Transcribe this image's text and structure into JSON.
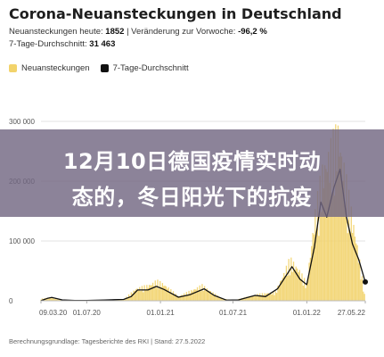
{
  "header": {
    "title": "Corona-Neuansteckungen in Deutschland",
    "line1_label": "Neuansteckungen heute:",
    "line1_value": "1852",
    "line1_sep": "|",
    "line1_change_label": "Veränderung zur Vorwoche:",
    "line1_change_value": "-96,2 %",
    "line2_label": "7-Tage-Durchschnitt:",
    "line2_value": "31 463"
  },
  "legend": {
    "items": [
      {
        "label": "Neuansteckungen",
        "color": "#f2d36b"
      },
      {
        "label": "7-Tage-Durchschnitt",
        "color": "#111111"
      }
    ]
  },
  "overlay": {
    "line1": "12月10日德国疫情实时动",
    "line2": "态的，冬日阳光下的抗疫"
  },
  "footer": {
    "text": "Berechnungsgrundlage: Tagesberichte des RKI | Stand: 27.5.2022"
  },
  "chart_data": {
    "type": "bar",
    "x_labels": [
      "09.03.20",
      "01.07.20",
      "01.01.21",
      "01.07.21",
      "01.01.22",
      "27.05.22"
    ],
    "y_ticks": [
      0,
      100000,
      200000,
      300000
    ],
    "y_tick_labels": [
      "0",
      "100 000",
      "200 000",
      "300 000"
    ],
    "ylim": [
      0,
      300000
    ],
    "bar_color": "#f2d36b",
    "avg_color": "#111111",
    "series": [
      {
        "name": "Neuansteckungen",
        "points": [
          [
            "2020-03-09",
            3500
          ],
          [
            "2020-04-01",
            6500
          ],
          [
            "2020-05-01",
            1500
          ],
          [
            "2020-07-01",
            500
          ],
          [
            "2020-10-01",
            2500
          ],
          [
            "2020-11-01",
            22000
          ],
          [
            "2020-12-01",
            28000
          ],
          [
            "2020-12-23",
            36000
          ],
          [
            "2021-01-10",
            30000
          ],
          [
            "2021-02-15",
            8000
          ],
          [
            "2021-04-15",
            28000
          ],
          [
            "2021-06-01",
            5000
          ],
          [
            "2021-07-01",
            700
          ],
          [
            "2021-09-01",
            12000
          ],
          [
            "2021-10-15",
            16000
          ],
          [
            "2021-11-20",
            75000
          ],
          [
            "2021-12-10",
            60000
          ],
          [
            "2022-01-01",
            30000
          ],
          [
            "2022-01-20",
            150000
          ],
          [
            "2022-02-10",
            240000
          ],
          [
            "2022-03-20",
            310000
          ],
          [
            "2022-04-15",
            190000
          ],
          [
            "2022-05-05",
            110000
          ],
          [
            "2022-05-27",
            1852
          ]
        ]
      },
      {
        "name": "7-Tage-Durchschnitt",
        "points": [
          [
            "2020-03-09",
            200
          ],
          [
            "2020-03-25",
            4000
          ],
          [
            "2020-04-05",
            5500
          ],
          [
            "2020-05-01",
            1500
          ],
          [
            "2020-06-01",
            400
          ],
          [
            "2020-07-01",
            450
          ],
          [
            "2020-08-15",
            1300
          ],
          [
            "2020-10-01",
            2200
          ],
          [
            "2020-10-20",
            7000
          ],
          [
            "2020-11-05",
            18000
          ],
          [
            "2020-12-01",
            18000
          ],
          [
            "2020-12-22",
            24000
          ],
          [
            "2021-01-10",
            19000
          ],
          [
            "2021-02-15",
            6000
          ],
          [
            "2021-03-15",
            10000
          ],
          [
            "2021-04-20",
            20000
          ],
          [
            "2021-05-15",
            9000
          ],
          [
            "2021-06-15",
            1000
          ],
          [
            "2021-07-15",
            1500
          ],
          [
            "2021-08-25",
            9000
          ],
          [
            "2021-09-20",
            7000
          ],
          [
            "2021-10-20",
            20000
          ],
          [
            "2021-11-25",
            57000
          ],
          [
            "2021-12-15",
            36000
          ],
          [
            "2022-01-01",
            27000
          ],
          [
            "2022-01-20",
            90000
          ],
          [
            "2022-02-05",
            165000
          ],
          [
            "2022-02-20",
            140000
          ],
          [
            "2022-03-10",
            190000
          ],
          [
            "2022-03-25",
            220000
          ],
          [
            "2022-04-10",
            140000
          ],
          [
            "2022-04-25",
            95000
          ],
          [
            "2022-05-10",
            70000
          ],
          [
            "2022-05-27",
            31463
          ]
        ]
      }
    ]
  }
}
